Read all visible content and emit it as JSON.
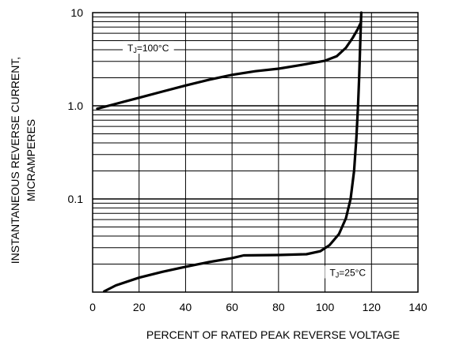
{
  "chart_data": {
    "type": "line",
    "title": "",
    "xlabel": "PERCENT OF RATED PEAK REVERSE VOLTAGE",
    "ylabel_lines": [
      "INSTANTANEOUS REVERSE CURRENT,",
      "MICRAMPERES"
    ],
    "xlim": [
      0,
      140
    ],
    "ylim": [
      0.01,
      10
    ],
    "yscale": "log",
    "xticks": [
      0,
      20,
      40,
      60,
      80,
      100,
      120,
      140
    ],
    "yticks": [
      {
        "value": 10,
        "label": "10"
      },
      {
        "value": 1,
        "label": "1.0"
      },
      {
        "value": 0.1,
        "label": "0.1"
      }
    ],
    "grid": true,
    "series": [
      {
        "name": "TJ=100°C",
        "annotation_prefix": "T",
        "annotation_sub": "J",
        "annotation_suffix": "=100°C",
        "annotation_at": {
          "x": 15,
          "y": 4.0
        },
        "x": [
          2,
          10,
          20,
          30,
          40,
          50,
          60,
          70,
          80,
          90,
          100,
          105,
          109,
          112,
          114,
          115.3
        ],
        "y": [
          0.93,
          1.05,
          1.22,
          1.42,
          1.65,
          1.9,
          2.15,
          2.35,
          2.5,
          2.75,
          3.05,
          3.4,
          4.2,
          5.4,
          6.6,
          7.7
        ]
      },
      {
        "name": "TJ=25°C",
        "annotation_prefix": "T",
        "annotation_sub": "J",
        "annotation_suffix": "=25°C",
        "annotation_at": {
          "x": 102,
          "y": 0.0155
        },
        "x": [
          5,
          10,
          20,
          30,
          40,
          50,
          60,
          65,
          80,
          92,
          98,
          102,
          106,
          109,
          111,
          112.5,
          113.5,
          114.2,
          114.7,
          115,
          115.3,
          115.5,
          115.6
        ],
        "y": [
          0.0102,
          0.0118,
          0.0143,
          0.0165,
          0.0187,
          0.021,
          0.0232,
          0.0248,
          0.025,
          0.0255,
          0.0275,
          0.032,
          0.042,
          0.062,
          0.1,
          0.2,
          0.45,
          1.0,
          2.0,
          3.5,
          6.0,
          8.5,
          10
        ]
      }
    ]
  }
}
